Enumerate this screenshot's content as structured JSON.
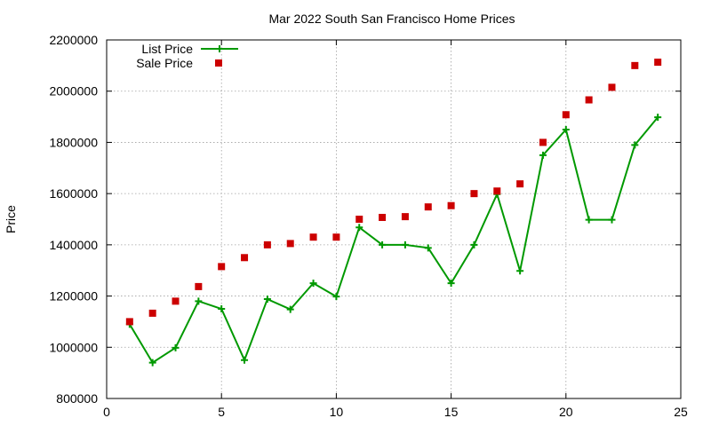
{
  "chart_data": {
    "type": "scatter",
    "title": "Mar 2022 South San Francisco Home Prices",
    "xlabel": "",
    "ylabel": "Price",
    "xlim": [
      0,
      25
    ],
    "ylim": [
      800000,
      2200000
    ],
    "x_ticks": [
      0,
      5,
      10,
      15,
      20,
      25
    ],
    "y_ticks": [
      800000,
      1000000,
      1200000,
      1400000,
      1600000,
      1800000,
      2000000,
      2200000
    ],
    "grid": true,
    "legend_position": "top-left",
    "x": [
      1,
      2,
      3,
      4,
      5,
      6,
      7,
      8,
      9,
      10,
      11,
      12,
      13,
      14,
      15,
      16,
      17,
      18,
      19,
      20,
      21,
      22,
      23,
      24
    ],
    "series": [
      {
        "name": "List Price",
        "style": "linespoints",
        "color": "#009900",
        "values": [
          1090000,
          940000,
          998000,
          1180000,
          1150000,
          950000,
          1188000,
          1148000,
          1250000,
          1198000,
          1468000,
          1400000,
          1400000,
          1388000,
          1250000,
          1400000,
          1598000,
          1298000,
          1750000,
          1850000,
          1498000,
          1498000,
          1790000,
          1898000
        ]
      },
      {
        "name": "Sale Price",
        "style": "points",
        "color": "#cc0000",
        "values": [
          1100000,
          1133000,
          1180000,
          1237000,
          1315000,
          1350000,
          1400000,
          1405000,
          1430000,
          1430000,
          1500000,
          1507000,
          1510000,
          1548000,
          1553000,
          1600000,
          1610000,
          1638000,
          1800000,
          1908000,
          1966000,
          2015000,
          2100000,
          2113000
        ]
      }
    ]
  }
}
